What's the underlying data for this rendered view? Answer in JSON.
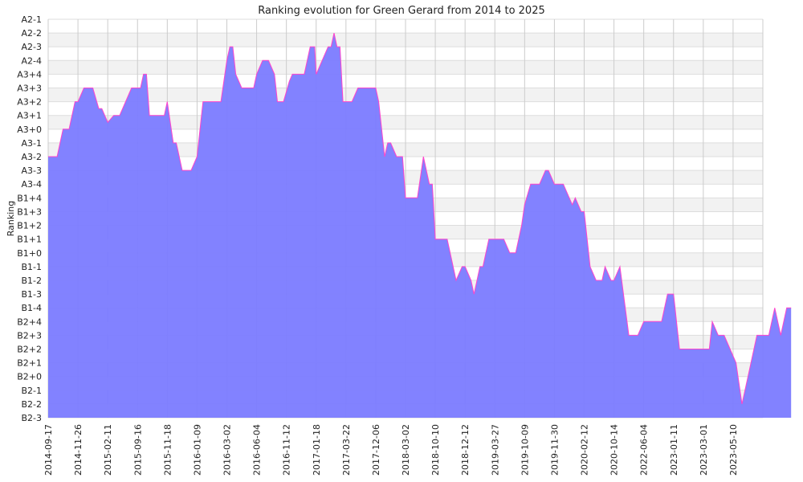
{
  "chart_data": {
    "type": "area",
    "title": "Ranking evolution for Green Gerard from 2014 to 2025",
    "xlabel": "",
    "ylabel": "Ranking",
    "y_categories": [
      "B2-3",
      "B2-2",
      "B2-1",
      "B2+0",
      "B2+1",
      "B2+2",
      "B2+3",
      "B2+4",
      "B1-4",
      "B1-3",
      "B1-2",
      "B1-1",
      "B1+0",
      "B1+1",
      "B1+2",
      "B1+3",
      "B1+4",
      "A3-4",
      "A3-3",
      "A3-2",
      "A3-1",
      "A3+0",
      "A3+1",
      "A3+2",
      "A3+3",
      "A3+4",
      "A2-4",
      "A2-3",
      "A2-2",
      "A2-1"
    ],
    "x_ticks": [
      "2014-09-17",
      "2014-11-26",
      "2015-02-11",
      "2015-09-16",
      "2015-11-18",
      "2016-01-09",
      "2016-03-02",
      "2016-06-04",
      "2016-11-12",
      "2017-01-18",
      "2017-03-22",
      "2017-12-06",
      "2018-03-02",
      "2018-10-10",
      "2018-12-12",
      "2019-03-27",
      "2019-10-09",
      "2019-11-30",
      "2020-02-12",
      "2020-10-14",
      "2022-06-04",
      "2023-01-11",
      "2023-03-01",
      "2023-05-10"
    ],
    "grid": true,
    "colors": {
      "fill": "#7b7bff",
      "line": "#ff44cc",
      "band": "#f2f2f2",
      "grid": "#cccccc"
    },
    "series": [
      {
        "points": [
          [
            0,
            19
          ],
          [
            0.3,
            19
          ],
          [
            0.5,
            21
          ],
          [
            0.7,
            21
          ],
          [
            0.9,
            23
          ],
          [
            1.0,
            23
          ],
          [
            1.2,
            24
          ],
          [
            1.5,
            24
          ],
          [
            1.7,
            22.5
          ],
          [
            1.8,
            22.5
          ],
          [
            2.0,
            21.5
          ],
          [
            2.2,
            22
          ],
          [
            2.4,
            22
          ],
          [
            2.5,
            22.5
          ],
          [
            2.8,
            24
          ],
          [
            3.1,
            24
          ],
          [
            3.2,
            25
          ],
          [
            3.3,
            25
          ],
          [
            3.4,
            22
          ],
          [
            3.6,
            22
          ],
          [
            3.9,
            22
          ],
          [
            4.0,
            23
          ],
          [
            4.2,
            20
          ],
          [
            4.3,
            20
          ],
          [
            4.5,
            18
          ],
          [
            4.8,
            18
          ],
          [
            5.0,
            19
          ],
          [
            5.2,
            23
          ],
          [
            5.5,
            23
          ],
          [
            5.7,
            23
          ],
          [
            5.8,
            23
          ],
          [
            6.0,
            26
          ],
          [
            6.1,
            27
          ],
          [
            6.2,
            27
          ],
          [
            6.3,
            25
          ],
          [
            6.4,
            24.5
          ],
          [
            6.5,
            24
          ],
          [
            6.9,
            24
          ],
          [
            7.0,
            25
          ],
          [
            7.2,
            26
          ],
          [
            7.4,
            26
          ],
          [
            7.6,
            25
          ],
          [
            7.7,
            23
          ],
          [
            7.9,
            23
          ],
          [
            8.1,
            24.5
          ],
          [
            8.2,
            25
          ],
          [
            8.6,
            25
          ],
          [
            8.8,
            27
          ],
          [
            8.95,
            27
          ],
          [
            9.0,
            25
          ],
          [
            9.2,
            26
          ],
          [
            9.4,
            27
          ],
          [
            9.5,
            27
          ],
          [
            9.6,
            28
          ],
          [
            9.7,
            27
          ],
          [
            9.8,
            27
          ],
          [
            9.9,
            23
          ],
          [
            10.2,
            23
          ],
          [
            10.4,
            24
          ],
          [
            10.6,
            24
          ],
          [
            10.8,
            24
          ],
          [
            11.0,
            24
          ],
          [
            11.1,
            23
          ],
          [
            11.3,
            19
          ],
          [
            11.4,
            20
          ],
          [
            11.5,
            20
          ],
          [
            11.7,
            19
          ],
          [
            11.9,
            19
          ],
          [
            12.0,
            16
          ],
          [
            12.4,
            16
          ],
          [
            12.6,
            19
          ],
          [
            12.8,
            17
          ],
          [
            12.9,
            17
          ],
          [
            13.0,
            13
          ],
          [
            13.4,
            13
          ],
          [
            13.6,
            11
          ],
          [
            13.7,
            10
          ],
          [
            13.9,
            11
          ],
          [
            14.0,
            11
          ],
          [
            14.2,
            10
          ],
          [
            14.3,
            9
          ],
          [
            14.5,
            11
          ],
          [
            14.6,
            11
          ],
          [
            14.8,
            13
          ],
          [
            15.3,
            13
          ],
          [
            15.5,
            12
          ],
          [
            15.7,
            12
          ],
          [
            15.9,
            14
          ],
          [
            16.0,
            15.5
          ],
          [
            16.2,
            17
          ],
          [
            16.5,
            17
          ],
          [
            16.7,
            18
          ],
          [
            16.8,
            18
          ],
          [
            17.0,
            17
          ],
          [
            17.3,
            17
          ],
          [
            17.6,
            15.5
          ],
          [
            17.7,
            16
          ],
          [
            17.9,
            15
          ],
          [
            18.0,
            15
          ],
          [
            18.2,
            11
          ],
          [
            18.4,
            10
          ],
          [
            18.6,
            10
          ],
          [
            18.7,
            11
          ],
          [
            18.9,
            10
          ],
          [
            19.0,
            10
          ],
          [
            19.2,
            11
          ],
          [
            19.5,
            6
          ],
          [
            19.8,
            6
          ],
          [
            20.0,
            7
          ],
          [
            20.3,
            7
          ],
          [
            20.6,
            7
          ],
          [
            20.8,
            9
          ],
          [
            21.0,
            9
          ],
          [
            21.2,
            5
          ],
          [
            21.5,
            5
          ],
          [
            21.8,
            5
          ],
          [
            22.0,
            5
          ],
          [
            22.2,
            5
          ],
          [
            22.3,
            7
          ],
          [
            22.5,
            6
          ],
          [
            22.7,
            6
          ],
          [
            22.9,
            5
          ],
          [
            23.1,
            4
          ],
          [
            23.3,
            1
          ],
          [
            23.5,
            3
          ],
          [
            23.8,
            6
          ],
          [
            24.0,
            6
          ],
          [
            24.2,
            6
          ],
          [
            24.4,
            8
          ],
          [
            24.6,
            6
          ],
          [
            24.8,
            8
          ],
          [
            24.95,
            8
          ]
        ]
      }
    ]
  }
}
